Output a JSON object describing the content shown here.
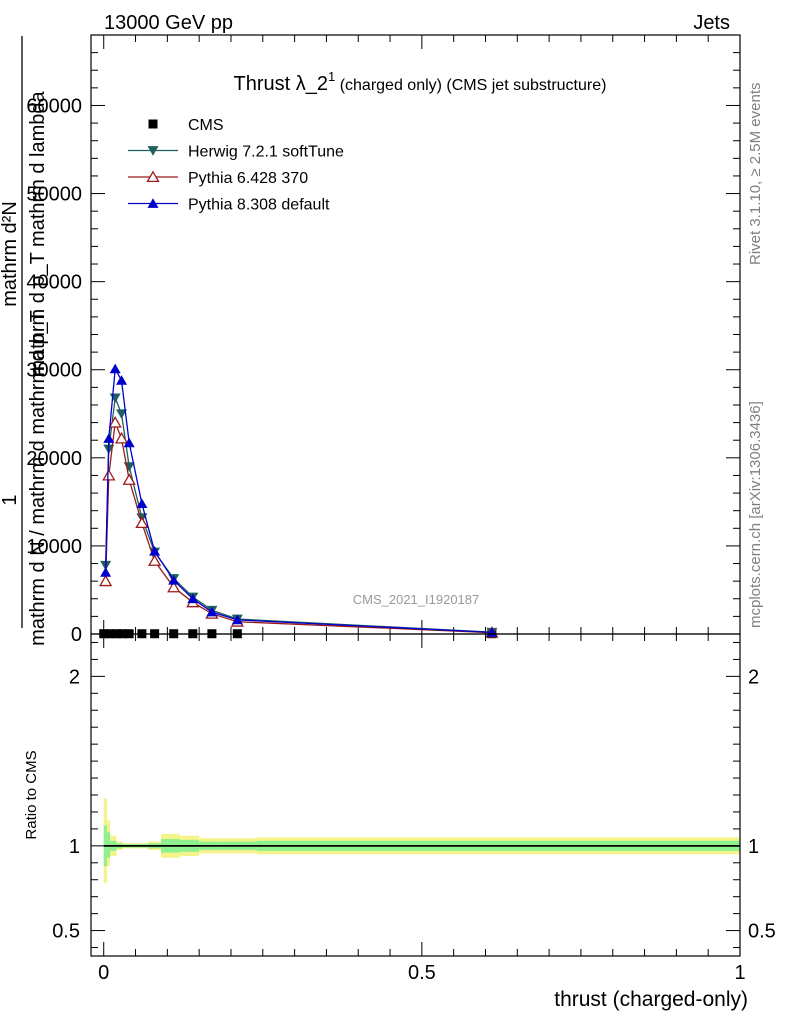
{
  "header": {
    "energy_label": "13000 GeV pp",
    "process_label": "Jets",
    "side_label_top": "Rivet 3.1.10, ≥ 2.5M events",
    "side_label_bottom": "mcplots.cern.ch [arXiv:1306.3436]",
    "analysis_label": "CMS_2021_I1920187"
  },
  "colors": {
    "cms": "#000000",
    "herwig": "#1f5f5f",
    "pythia6": "#9b1b1b",
    "pythia8": "#0000cc",
    "band_inner": "#8ef08e",
    "band_outer": "#f4f48a"
  },
  "chart_data": [
    {
      "type": "line",
      "title": "Thrust λ_2¹ (charged only) (CMS jet substructure)",
      "title_main": "Thrust λ_2",
      "title_sup": "1",
      "title_rest": " (charged only) (CMS jet substructure)",
      "ylabel_top": "mathrm d²N",
      "ylabel_top2": "mathrm d p_T mathrm d lambda",
      "ylabel_bottom": "mathrm d N / mathrm d mathrm d p_T",
      "ylabel_one": "1",
      "xlim": [
        -0.02,
        1.0
      ],
      "ylim": [
        0,
        68000
      ],
      "yticks": [
        0,
        10000,
        20000,
        30000,
        40000,
        50000,
        60000
      ],
      "ytick_labels": [
        "0",
        "10000",
        "20000",
        "30000",
        "40000",
        "50000",
        "60000"
      ],
      "legend": {
        "position": "top-left",
        "entries": [
          "CMS",
          "Herwig 7.2.1 softTune",
          "Pythia 6.428 370",
          "Pythia 8.308 default"
        ]
      },
      "series": [
        {
          "name": "CMS",
          "marker": "square",
          "x": [
            0.0,
            0.01,
            0.02,
            0.03,
            0.04,
            0.06,
            0.08,
            0.11,
            0.14,
            0.17,
            0.21,
            0.61
          ],
          "y": [
            30,
            30,
            30,
            30,
            30,
            30,
            30,
            30,
            30,
            30,
            30,
            30
          ]
        },
        {
          "name": "Herwig 7.2.1 softTune",
          "marker": "triangle-down",
          "x": [
            0.003,
            0.008,
            0.018,
            0.028,
            0.04,
            0.06,
            0.08,
            0.11,
            0.14,
            0.17,
            0.21,
            0.61
          ],
          "y": [
            7800,
            21000,
            26800,
            25000,
            19000,
            13200,
            9300,
            6300,
            4200,
            2700,
            1700,
            200
          ]
        },
        {
          "name": "Pythia 6.428 370",
          "marker": "triangle-up-open",
          "x": [
            0.003,
            0.008,
            0.018,
            0.028,
            0.04,
            0.06,
            0.08,
            0.11,
            0.14,
            0.17,
            0.21,
            0.61
          ],
          "y": [
            6000,
            18000,
            24000,
            22200,
            17500,
            12600,
            8300,
            5300,
            3600,
            2300,
            1400,
            150
          ]
        },
        {
          "name": "Pythia 8.308 default",
          "marker": "triangle-up",
          "x": [
            0.003,
            0.008,
            0.018,
            0.028,
            0.04,
            0.06,
            0.08,
            0.11,
            0.14,
            0.17,
            0.21,
            0.61
          ],
          "y": [
            7000,
            22200,
            30100,
            28800,
            21700,
            14800,
            9400,
            6100,
            4000,
            2500,
            1600,
            180
          ]
        }
      ]
    },
    {
      "type": "area",
      "ylabel": "Ratio to CMS",
      "xlabel": "thrust (charged-only)",
      "xlim": [
        -0.02,
        1.0
      ],
      "ylim": [
        0.35,
        2.25
      ],
      "yticks": [
        0.5,
        1,
        2
      ],
      "ytick_labels": [
        "0.5",
        "1",
        "2"
      ],
      "xticks": [
        0,
        0.5,
        1
      ],
      "xtick_labels": [
        "0",
        "0.5",
        "1"
      ],
      "reference": 1,
      "bins": [
        0.0,
        0.005,
        0.01,
        0.02,
        0.03,
        0.05,
        0.07,
        0.09,
        0.12,
        0.15,
        0.18,
        0.24,
        1.0
      ],
      "band_inner": [
        [
          0.88,
          1.12
        ],
        [
          0.93,
          1.08
        ],
        [
          0.97,
          1.03
        ],
        [
          0.985,
          1.015
        ],
        [
          0.99,
          1.01
        ],
        [
          0.99,
          1.01
        ],
        [
          0.985,
          1.015
        ],
        [
          0.96,
          1.04
        ],
        [
          0.965,
          1.035
        ],
        [
          0.975,
          1.025
        ],
        [
          0.975,
          1.025
        ],
        [
          0.97,
          1.03
        ]
      ],
      "band_outer": [
        [
          0.78,
          1.28
        ],
        [
          0.88,
          1.15
        ],
        [
          0.94,
          1.06
        ],
        [
          0.975,
          1.025
        ],
        [
          0.985,
          1.015
        ],
        [
          0.985,
          1.015
        ],
        [
          0.975,
          1.025
        ],
        [
          0.93,
          1.07
        ],
        [
          0.94,
          1.06
        ],
        [
          0.955,
          1.045
        ],
        [
          0.955,
          1.045
        ],
        [
          0.95,
          1.05
        ]
      ]
    }
  ]
}
